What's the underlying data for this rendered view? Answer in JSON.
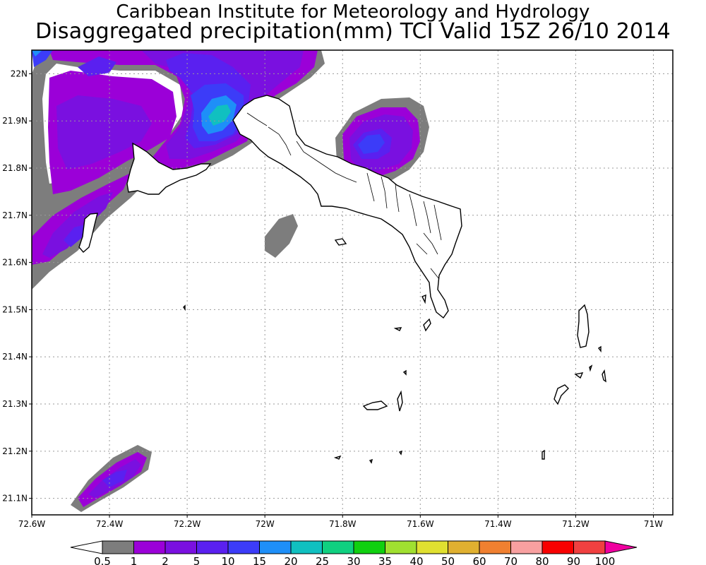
{
  "header": {
    "title_line1": "Caribbean Institute for Meteorology and Hydrology",
    "title_line2": "Disaggregated precipitation(mm) TCI Valid 15Z 26/10 2014"
  },
  "map": {
    "lon_range": [
      -72.6,
      -70.95
    ],
    "lat_range": [
      21.065,
      22.05
    ],
    "lon_ticks": [
      {
        "value": -72.6,
        "label": "72.6W"
      },
      {
        "value": -72.4,
        "label": "72.4W"
      },
      {
        "value": -72.2,
        "label": "72.2W"
      },
      {
        "value": -72.0,
        "label": "72W"
      },
      {
        "value": -71.8,
        "label": "71.8W"
      },
      {
        "value": -71.6,
        "label": "71.6W"
      },
      {
        "value": -71.4,
        "label": "71.4W"
      },
      {
        "value": -71.2,
        "label": "71.2W"
      },
      {
        "value": -71.0,
        "label": "71W"
      }
    ],
    "lat_ticks": [
      {
        "value": 22.0,
        "label": "22N"
      },
      {
        "value": 21.9,
        "label": "21.9N"
      },
      {
        "value": 21.8,
        "label": "21.8N"
      },
      {
        "value": 21.7,
        "label": "21.7N"
      },
      {
        "value": 21.6,
        "label": "21.6N"
      },
      {
        "value": 21.5,
        "label": "21.5N"
      },
      {
        "value": 21.4,
        "label": "21.4N"
      },
      {
        "value": 21.3,
        "label": "21.3N"
      },
      {
        "value": 21.2,
        "label": "21.2N"
      },
      {
        "value": 21.1,
        "label": "21.1N"
      }
    ],
    "gridlines": "dotted"
  },
  "colorbar": {
    "boundaries": [
      "0.5",
      "1",
      "2",
      "5",
      "10",
      "15",
      "20",
      "25",
      "30",
      "35",
      "40",
      "50",
      "60",
      "70",
      "80",
      "90",
      "100"
    ],
    "colors": [
      "#7d7d7d",
      "#9b00d8",
      "#7a10e0",
      "#5a20f0",
      "#3c3cf8",
      "#1e8ff8",
      "#10c0c0",
      "#10d080",
      "#10d010",
      "#a0e030",
      "#e0e030",
      "#e0b030",
      "#f08030",
      "#f8a0a0",
      "#f80000",
      "#f04040"
    ],
    "under_color": "#ffffff",
    "over_color": "#f000a0"
  }
}
